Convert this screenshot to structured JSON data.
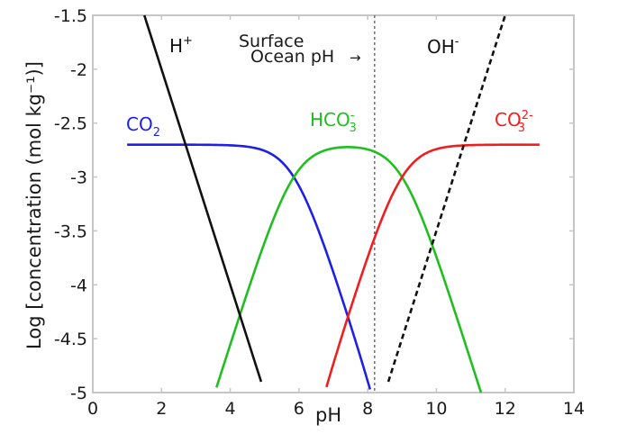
{
  "chart_data": {
    "type": "line",
    "title": "",
    "xlabel": "pH",
    "ylabel": "Log [concentration (mol kg⁻¹)]",
    "xlim": [
      0,
      14
    ],
    "ylim": [
      -5,
      -1.5
    ],
    "xticks": [
      0,
      2,
      4,
      6,
      8,
      10,
      12,
      14
    ],
    "xtick_labels": [
      "0",
      "2",
      "4",
      "6",
      "8",
      "10",
      "12",
      "14"
    ],
    "yticks": [
      -1.5,
      -2,
      -2.5,
      -3,
      -3.5,
      -4,
      -4.5,
      -5
    ],
    "ytick_labels": [
      "-1.5",
      "-2",
      "-2.5",
      "-3",
      "-3.5",
      "-4",
      "-4.5",
      "-5"
    ],
    "grid": false,
    "legend": "none (inline labels)",
    "model": {
      "log_total_dic": -2.7,
      "pK1": 5.85,
      "pK2": 9.0
    },
    "series": [
      {
        "name": "CO2",
        "label_main": "CO",
        "label_sub": "2",
        "label_sup": "",
        "color": "#1f1fe6",
        "style": "solid",
        "kind": "co2",
        "x_range": [
          1.0,
          8.07
        ],
        "points": [
          [
            1,
            -2.7
          ],
          [
            2,
            -2.7
          ],
          [
            3,
            -2.7
          ],
          [
            4,
            -2.71
          ],
          [
            5,
            -2.76
          ],
          [
            5.85,
            -3.0
          ],
          [
            6,
            -3.08
          ],
          [
            7,
            -3.88
          ],
          [
            8,
            -4.89
          ],
          [
            8.07,
            -4.97
          ]
        ]
      },
      {
        "name": "HCO3-",
        "label_main": "HCO",
        "label_sub": "3",
        "label_sup": "-",
        "color": "#1fbf1f",
        "style": "solid",
        "kind": "hco3",
        "x_range": [
          3.6,
          11.3
        ],
        "points": [
          [
            3.6,
            -4.95
          ],
          [
            4,
            -4.56
          ],
          [
            5,
            -3.61
          ],
          [
            6,
            -2.93
          ],
          [
            7,
            -2.73
          ],
          [
            7.43,
            -2.72
          ],
          [
            8,
            -2.74
          ],
          [
            9,
            -3.0
          ],
          [
            10,
            -3.74
          ],
          [
            11,
            -4.7
          ],
          [
            11.3,
            -5.0
          ]
        ]
      },
      {
        "name": "CO3 2-",
        "label_main": "CO",
        "label_sub": "3",
        "label_sup": "2-",
        "color": "#f01e1e",
        "style": "solid",
        "kind": "co3",
        "x_range": [
          6.8,
          13.0
        ],
        "points": [
          [
            6.8,
            -4.95
          ],
          [
            7,
            -4.73
          ],
          [
            8,
            -3.74
          ],
          [
            9,
            -3.0
          ],
          [
            10,
            -2.74
          ],
          [
            11,
            -2.7
          ],
          [
            12,
            -2.7
          ],
          [
            13,
            -2.7
          ]
        ]
      },
      {
        "name": "H+",
        "label_main": "H",
        "label_sub": "",
        "label_sup": "+",
        "color": "#111111",
        "style": "solid",
        "kind": "h",
        "x_range": [
          1.5,
          4.9
        ],
        "points": [
          [
            1.5,
            -1.5
          ],
          [
            2,
            -2.0
          ],
          [
            3,
            -3.0
          ],
          [
            4,
            -4.0
          ],
          [
            4.9,
            -4.9
          ]
        ]
      },
      {
        "name": "OH-",
        "label_main": "OH",
        "label_sub": "",
        "label_sup": "-",
        "color": "#111111",
        "style": "dashed",
        "kind": "oh",
        "x_range": [
          8.6,
          12.0
        ],
        "points": [
          [
            8.6,
            -4.9
          ],
          [
            9,
            -4.5
          ],
          [
            10,
            -3.5
          ],
          [
            11,
            -2.5
          ],
          [
            12,
            -1.5
          ]
        ]
      }
    ],
    "annotations": [
      {
        "text_line1": "Surface",
        "text_line2": "Ocean pH",
        "arrow": "→",
        "x": 8.2,
        "style": "dotted vertical line"
      }
    ]
  }
}
